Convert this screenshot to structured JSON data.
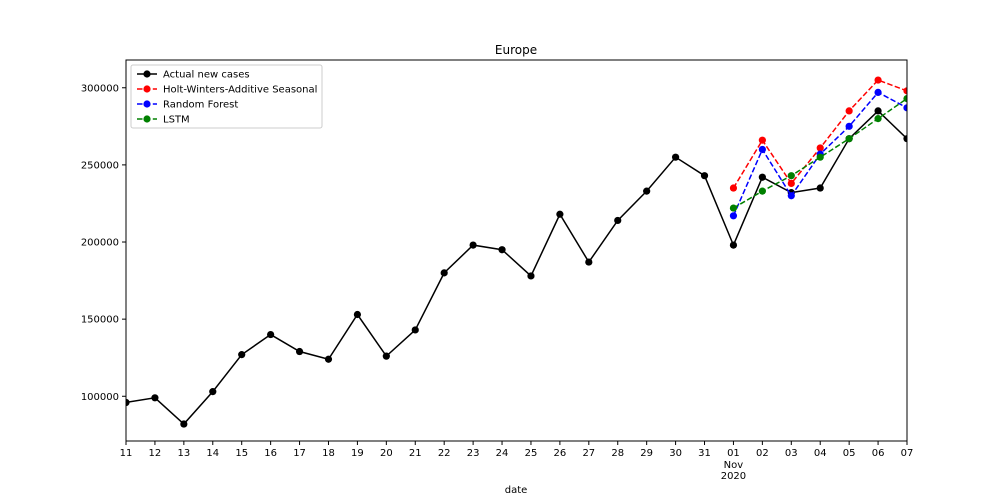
{
  "chart_data": {
    "type": "line",
    "title": "Europe",
    "xlabel": "date",
    "ylabel": "",
    "x_ticks": [
      "11",
      "12",
      "13",
      "14",
      "15",
      "16",
      "17",
      "18",
      "19",
      "20",
      "21",
      "22",
      "23",
      "24",
      "25",
      "26",
      "27",
      "28",
      "29",
      "30",
      "31",
      "01",
      "02",
      "03",
      "04",
      "05",
      "06",
      "07"
    ],
    "x_tick_month_label": "Nov",
    "x_tick_year_label": "2020",
    "x_range": [
      "2020-10-11",
      "2020-11-07"
    ],
    "ylim": [
      71000,
      318000
    ],
    "y_ticks": [
      100000,
      150000,
      200000,
      250000,
      300000
    ],
    "grid": false,
    "legend_position": "top-left",
    "series": [
      {
        "name": "Actual new cases",
        "color": "#000000",
        "linestyle": "solid",
        "x": [
          "2020-10-11",
          "2020-10-12",
          "2020-10-13",
          "2020-10-14",
          "2020-10-15",
          "2020-10-16",
          "2020-10-17",
          "2020-10-18",
          "2020-10-19",
          "2020-10-20",
          "2020-10-21",
          "2020-10-22",
          "2020-10-23",
          "2020-10-24",
          "2020-10-25",
          "2020-10-26",
          "2020-10-27",
          "2020-10-28",
          "2020-10-29",
          "2020-10-30",
          "2020-10-31",
          "2020-11-01",
          "2020-11-02",
          "2020-11-03",
          "2020-11-04",
          "2020-11-05",
          "2020-11-06",
          "2020-11-07"
        ],
        "values": [
          96000,
          99000,
          82000,
          103000,
          127000,
          140000,
          129000,
          124000,
          153000,
          126000,
          143000,
          180000,
          198000,
          195000,
          178000,
          218000,
          187000,
          214000,
          233000,
          255000,
          243000,
          198000,
          242000,
          232000,
          235000,
          267000,
          285000,
          267000
        ]
      },
      {
        "name": "Holt-Winters-Additive Seasonal",
        "color": "#ff0000",
        "linestyle": "dashed",
        "x": [
          "2020-11-01",
          "2020-11-02",
          "2020-11-03",
          "2020-11-04",
          "2020-11-05",
          "2020-11-06",
          "2020-11-07"
        ],
        "values": [
          235000,
          266000,
          238000,
          261000,
          285000,
          305000,
          298000
        ]
      },
      {
        "name": "Random Forest",
        "color": "#0000ff",
        "linestyle": "dashed",
        "x": [
          "2020-11-01",
          "2020-11-02",
          "2020-11-03",
          "2020-11-04",
          "2020-11-05",
          "2020-11-06",
          "2020-11-07"
        ],
        "values": [
          217000,
          260000,
          230000,
          257000,
          275000,
          297000,
          287000
        ]
      },
      {
        "name": "LSTM",
        "color": "#008000",
        "linestyle": "dashed",
        "x": [
          "2020-11-01",
          "2020-11-02",
          "2020-11-03",
          "2020-11-04",
          "2020-11-05",
          "2020-11-06",
          "2020-11-07"
        ],
        "values": [
          222000,
          233000,
          243000,
          255000,
          267000,
          280000,
          293000
        ]
      }
    ]
  }
}
